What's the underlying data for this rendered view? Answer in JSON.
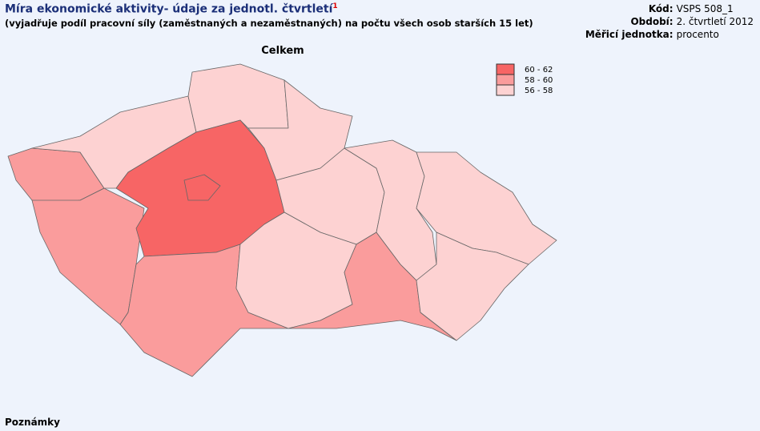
{
  "header": {
    "title": "Míra ekonomické aktivity- údaje za jednotl. čtvrtletí",
    "footnote": "1",
    "subtitle": "(vyjadřuje podíl pracovní síly (zaměstnaných a nezaměstnaných) na počtu všech osob starších 15 let)"
  },
  "meta": [
    {
      "key": "Kód:",
      "value": "VSPS 508_1"
    },
    {
      "key": "Období:",
      "value": "2. čtvrtletí 2012"
    },
    {
      "key": "Měřicí jednotka:",
      "value": "procento"
    }
  ],
  "map": {
    "title": "Celkem",
    "legend": [
      {
        "label": "60 - 62",
        "color": "#f76565"
      },
      {
        "label": "58 - 60",
        "color": "#fa9c9c"
      },
      {
        "label": "56 - 58",
        "color": "#fdd2d2"
      }
    ]
  },
  "footer": {
    "notes": "Poznámky"
  }
}
